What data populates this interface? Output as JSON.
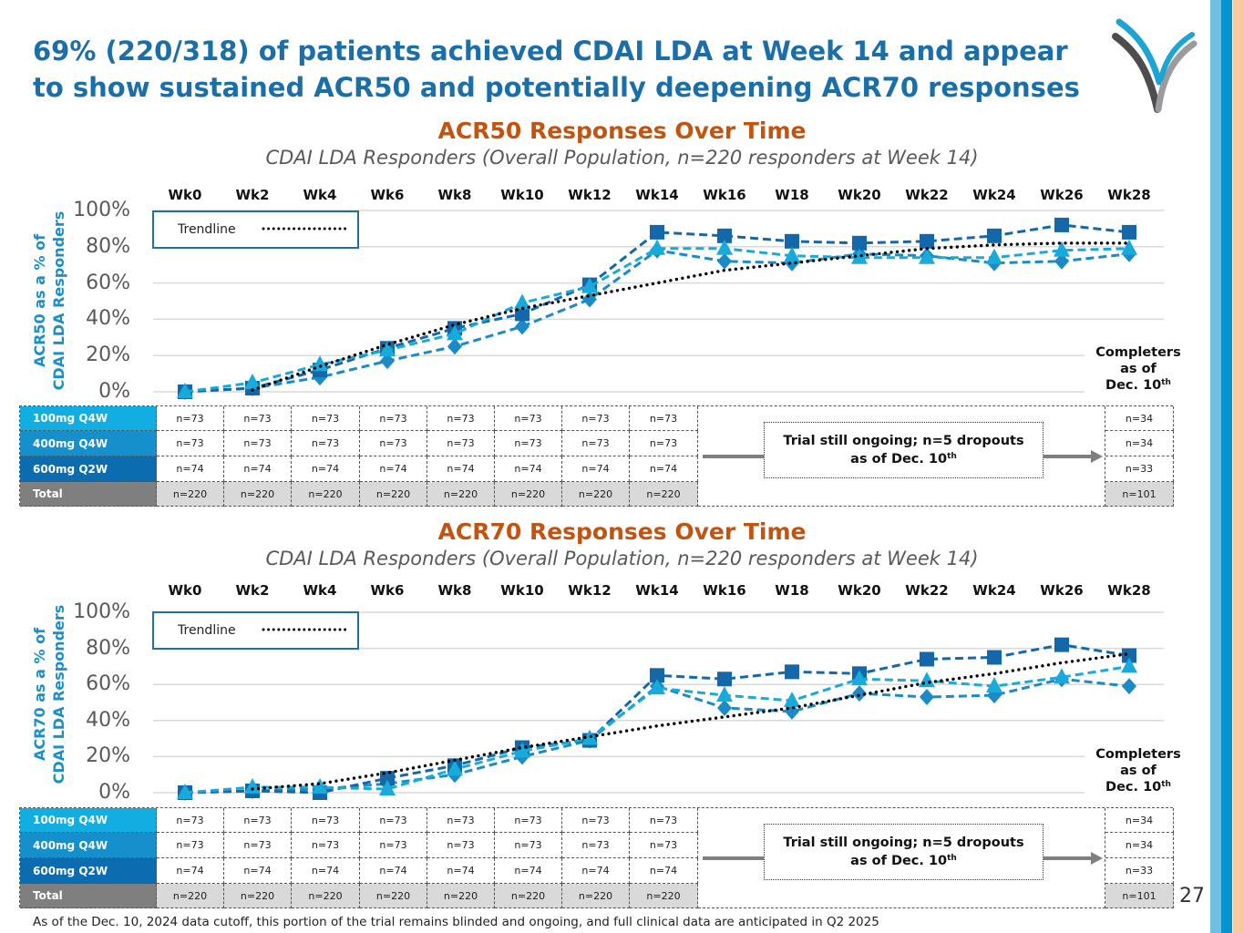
{
  "header": {
    "title_line1": "69% (220/318) of patients achieved CDAI LDA at Week 14 and appear",
    "title_line2": "to show sustained ACR50 and potentially deepening ACR70 responses",
    "logo_icon": "company-logo-icon"
  },
  "colors": {
    "title": "#1b6fa8",
    "chart_title": "#c25410",
    "axis_title": "#1a8fc9",
    "trendline": "#000000",
    "side_bar_light": "#6ebfe2",
    "side_bar_dark": "#0893cf",
    "side_bar_peach": "#f8c99c"
  },
  "legend": {
    "label": "Trendline"
  },
  "completers_label": {
    "line1": "Completers",
    "line2": "as of",
    "line3": "Dec. 10",
    "sup": "th"
  },
  "chart_data": [
    {
      "type": "line",
      "title": "ACR50 Responses Over Time",
      "subtitle": "CDAI LDA Responders (Overall Population, n=220 responders at Week 14)",
      "ylabel_line1": "ACR50 as a % of",
      "ylabel_line2": "CDAI LDA Responders",
      "xlabel": "",
      "categories": [
        "Wk0",
        "Wk2",
        "Wk4",
        "Wk6",
        "Wk8",
        "Wk10",
        "Wk12",
        "Wk14",
        "Wk16",
        "W18",
        "Wk20",
        "Wk22",
        "Wk24",
        "Wk26",
        "Wk28"
      ],
      "yticks": [
        "0%",
        "20%",
        "40%",
        "60%",
        "80%",
        "100%"
      ],
      "ytick_values": [
        0,
        20,
        40,
        60,
        80,
        100
      ],
      "ylim": [
        0,
        100
      ],
      "grid": true,
      "legend_position": "top-left",
      "series": [
        {
          "name": "100mg Q4W",
          "marker": "triangle",
          "color": "#17aadb",
          "values": [
            0,
            5,
            15,
            23,
            32,
            49,
            58,
            79,
            79,
            75,
            74,
            74,
            74,
            78,
            79
          ]
        },
        {
          "name": "400mg Q4W",
          "marker": "diamond",
          "color": "#1b8ac6",
          "values": [
            0,
            2,
            8,
            17,
            25,
            36,
            51,
            78,
            72,
            71,
            76,
            75,
            71,
            72,
            76
          ]
        },
        {
          "name": "600mg Q2W",
          "marker": "square",
          "color": "#1468a9",
          "values": [
            0,
            2,
            12,
            24,
            35,
            43,
            59,
            88,
            86,
            83,
            82,
            83,
            86,
            92,
            88
          ]
        }
      ],
      "trendline": {
        "name": "Trendline",
        "values": [
          null,
          1,
          14,
          26,
          37,
          46,
          53,
          60,
          67,
          71,
          75,
          79,
          81,
          82,
          82
        ]
      }
    },
    {
      "type": "line",
      "title": "ACR70 Responses Over Time",
      "subtitle": "CDAI LDA Responders (Overall Population, n=220 responders at Week 14)",
      "ylabel_line1": "ACR70 as a % of",
      "ylabel_line2": "CDAI LDA Responders",
      "xlabel": "",
      "categories": [
        "Wk0",
        "Wk2",
        "Wk4",
        "Wk6",
        "Wk8",
        "Wk10",
        "Wk12",
        "Wk14",
        "Wk16",
        "W18",
        "Wk20",
        "Wk22",
        "Wk24",
        "Wk26",
        "Wk28"
      ],
      "yticks": [
        "0%",
        "20%",
        "40%",
        "60%",
        "80%",
        "100%"
      ],
      "ytick_values": [
        0,
        20,
        40,
        60,
        80,
        100
      ],
      "ylim": [
        0,
        100
      ],
      "grid": true,
      "legend_position": "top-left",
      "series": [
        {
          "name": "100mg Q4W",
          "marker": "triangle",
          "color": "#17aadb",
          "values": [
            0,
            3,
            3,
            2,
            13,
            23,
            30,
            58,
            54,
            51,
            63,
            62,
            59,
            64,
            70
          ]
        },
        {
          "name": "400mg Q4W",
          "marker": "diamond",
          "color": "#1b8ac6",
          "values": [
            0,
            1,
            2,
            5,
            10,
            20,
            29,
            59,
            47,
            45,
            55,
            53,
            54,
            63,
            59
          ]
        },
        {
          "name": "600mg Q2W",
          "marker": "square",
          "color": "#1468a9",
          "values": [
            0,
            1,
            0,
            8,
            15,
            25,
            29,
            65,
            63,
            67,
            66,
            74,
            75,
            82,
            76
          ]
        }
      ],
      "trendline": {
        "name": "Trendline",
        "values": [
          null,
          2,
          5,
          11,
          18,
          25,
          31,
          37,
          42,
          47,
          54,
          61,
          66,
          72,
          77
        ]
      }
    }
  ],
  "tables": [
    {
      "rows": [
        {
          "label": "100mg Q4W",
          "color": "#12aee1",
          "cells": [
            "n=73",
            "n=73",
            "n=73",
            "n=73",
            "n=73",
            "n=73",
            "n=73",
            "n=73"
          ],
          "completers": "n=34"
        },
        {
          "label": "400mg Q4W",
          "color": "#1590cc",
          "cells": [
            "n=73",
            "n=73",
            "n=73",
            "n=73",
            "n=73",
            "n=73",
            "n=73",
            "n=73"
          ],
          "completers": "n=34"
        },
        {
          "label": "600mg Q2W",
          "color": "#0b6db0",
          "cells": [
            "n=74",
            "n=74",
            "n=74",
            "n=74",
            "n=74",
            "n=74",
            "n=74",
            "n=74"
          ],
          "completers": "n=33"
        },
        {
          "label": "Total",
          "color": "#7f7f7f",
          "cells": [
            "n=220",
            "n=220",
            "n=220",
            "n=220",
            "n=220",
            "n=220",
            "n=220",
            "n=220"
          ],
          "completers": "n=101"
        }
      ],
      "note_line1": "Trial still ongoing; n=5 dropouts",
      "note_line2": "as of Dec. 10",
      "note_sup": "th"
    },
    {
      "rows": [
        {
          "label": "100mg Q4W",
          "color": "#12aee1",
          "cells": [
            "n=73",
            "n=73",
            "n=73",
            "n=73",
            "n=73",
            "n=73",
            "n=73",
            "n=73"
          ],
          "completers": "n=34"
        },
        {
          "label": "400mg Q4W",
          "color": "#1590cc",
          "cells": [
            "n=73",
            "n=73",
            "n=73",
            "n=73",
            "n=73",
            "n=73",
            "n=73",
            "n=73"
          ],
          "completers": "n=34"
        },
        {
          "label": "600mg Q2W",
          "color": "#0b6db0",
          "cells": [
            "n=74",
            "n=74",
            "n=74",
            "n=74",
            "n=74",
            "n=74",
            "n=74",
            "n=74"
          ],
          "completers": "n=33"
        },
        {
          "label": "Total",
          "color": "#7f7f7f",
          "cells": [
            "n=220",
            "n=220",
            "n=220",
            "n=220",
            "n=220",
            "n=220",
            "n=220",
            "n=220"
          ],
          "completers": "n=101"
        }
      ],
      "note_line1": "Trial still ongoing; n=5 dropouts",
      "note_line2": "as of Dec. 10",
      "note_sup": "th"
    }
  ],
  "footer": {
    "note": "As of the Dec. 10, 2024 data cutoff, this portion of the trial remains blinded and ongoing, and full clinical data are anticipated in Q2 2025",
    "page_number": "27"
  }
}
